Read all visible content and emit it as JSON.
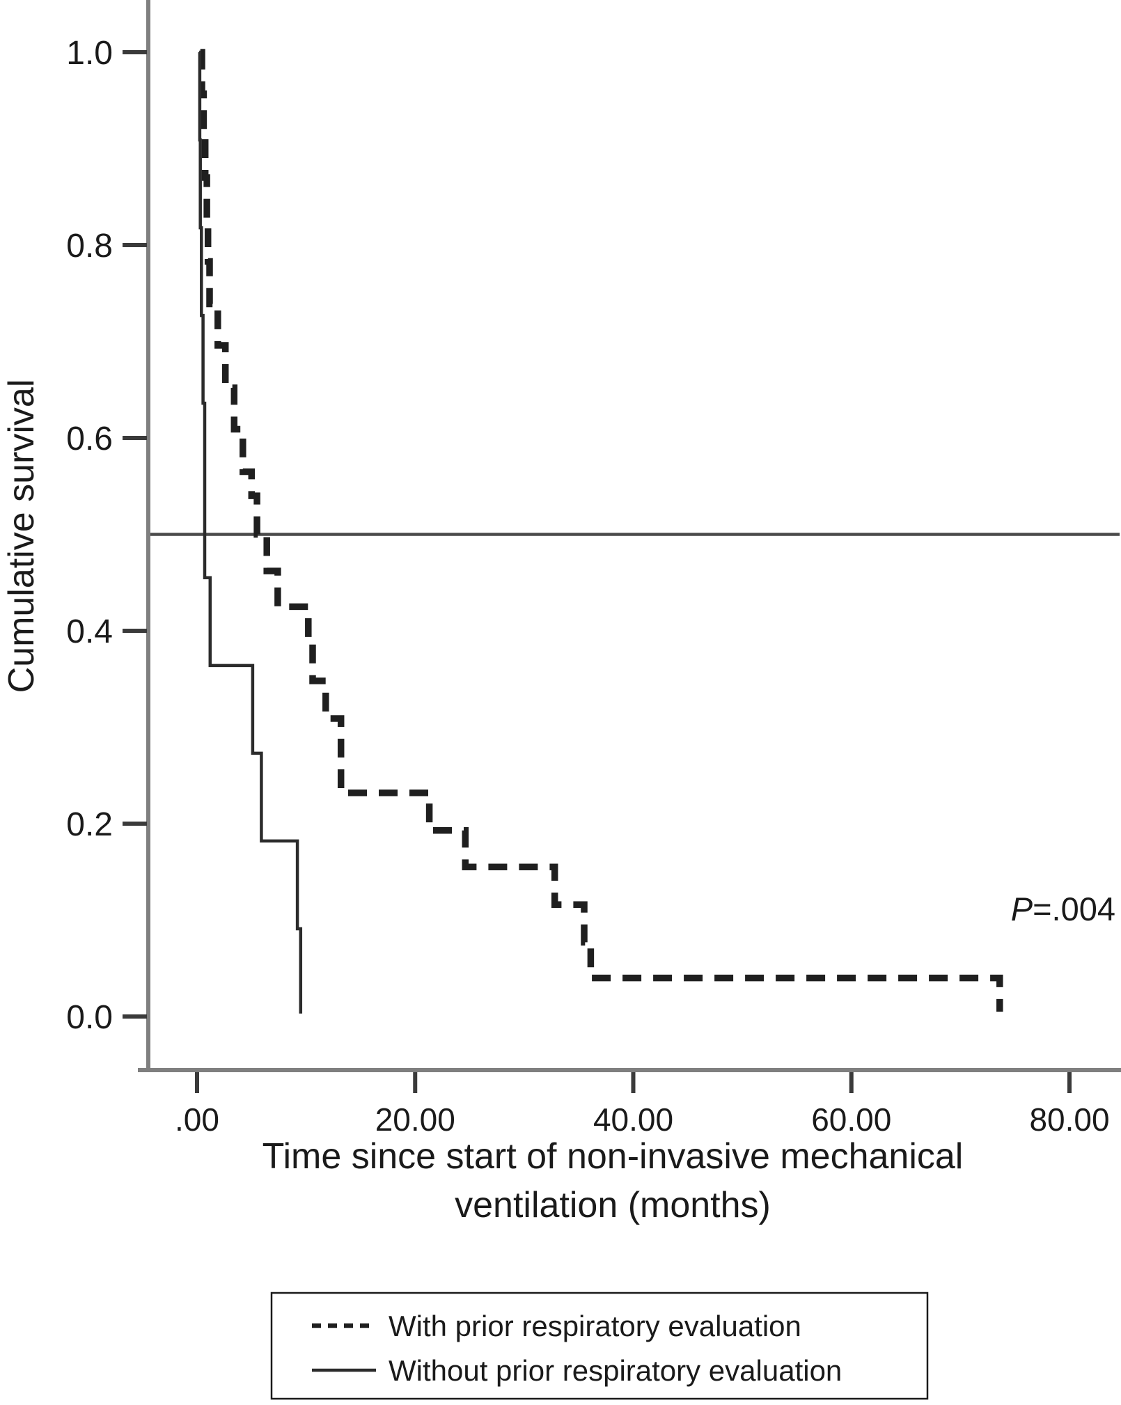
{
  "page": {
    "background": "#ffffff"
  },
  "chart_data": {
    "type": "line",
    "subtype": "kaplan-meier-step-curves",
    "title": "",
    "ylabel": "Cumulative survival",
    "xlabel_line1": "Time since start of non-invasive mechanical",
    "xlabel_line2": "ventilation (months)",
    "xlim": [
      0,
      80
    ],
    "ylim": [
      0.0,
      1.0
    ],
    "grid": false,
    "legend_position": "bottom",
    "x_ticks": [
      {
        "label": ".00",
        "value": 0
      },
      {
        "label": "20.00",
        "value": 20
      },
      {
        "label": "40.00",
        "value": 40
      },
      {
        "label": "60.00",
        "value": 60
      },
      {
        "label": "80.00",
        "value": 80
      }
    ],
    "y_ticks": [
      {
        "label": "1.0",
        "value": 1.0
      },
      {
        "label": "0.8",
        "value": 0.8
      },
      {
        "label": "0.6",
        "value": 0.6
      },
      {
        "label": "0.4",
        "value": 0.4
      },
      {
        "label": "0.2",
        "value": 0.2
      },
      {
        "label": "0.0",
        "value": 0.0
      }
    ],
    "reference_line": {
      "y": 0.5,
      "color": "#4a4a4a"
    },
    "annotation": {
      "text_italic": "P",
      "text_rest": "=.004"
    },
    "colors": {
      "axis": "#7f7f7f",
      "tick": "#3a3a3a",
      "curve_dashed": "#1f1f1f",
      "curve_solid": "#2b2b2b"
    },
    "series": [
      {
        "name": "With prior respiratory evaluation",
        "style": "dashed",
        "color": "#1f1f1f",
        "points": [
          [
            0.3,
            1.0
          ],
          [
            0.45,
            0.957
          ],
          [
            0.6,
            0.913
          ],
          [
            0.75,
            0.87
          ],
          [
            0.9,
            0.826
          ],
          [
            1.0,
            0.783
          ],
          [
            1.15,
            0.739
          ],
          [
            1.9,
            0.696
          ],
          [
            2.6,
            0.652
          ],
          [
            3.4,
            0.609
          ],
          [
            4.2,
            0.565
          ],
          [
            5.0,
            0.54
          ],
          [
            5.5,
            0.5
          ],
          [
            6.4,
            0.462
          ],
          [
            7.4,
            0.425
          ],
          [
            10.2,
            0.386
          ],
          [
            10.6,
            0.348
          ],
          [
            11.8,
            0.309
          ],
          [
            13.2,
            0.232
          ],
          [
            21.3,
            0.193
          ],
          [
            24.6,
            0.155
          ],
          [
            32.8,
            0.116
          ],
          [
            35.5,
            0.077
          ],
          [
            36.1,
            0.04
          ],
          [
            73.6,
            0.005
          ]
        ]
      },
      {
        "name": "Without prior respiratory evaluation",
        "style": "solid",
        "color": "#2b2b2b",
        "points": [
          [
            0.2,
            1.0
          ],
          [
            0.25,
            0.909
          ],
          [
            0.3,
            0.818
          ],
          [
            0.4,
            0.727
          ],
          [
            0.55,
            0.636
          ],
          [
            0.7,
            0.455
          ],
          [
            1.2,
            0.364
          ],
          [
            5.1,
            0.273
          ],
          [
            5.9,
            0.182
          ],
          [
            9.2,
            0.091
          ],
          [
            9.5,
            0.003
          ]
        ]
      }
    ]
  }
}
